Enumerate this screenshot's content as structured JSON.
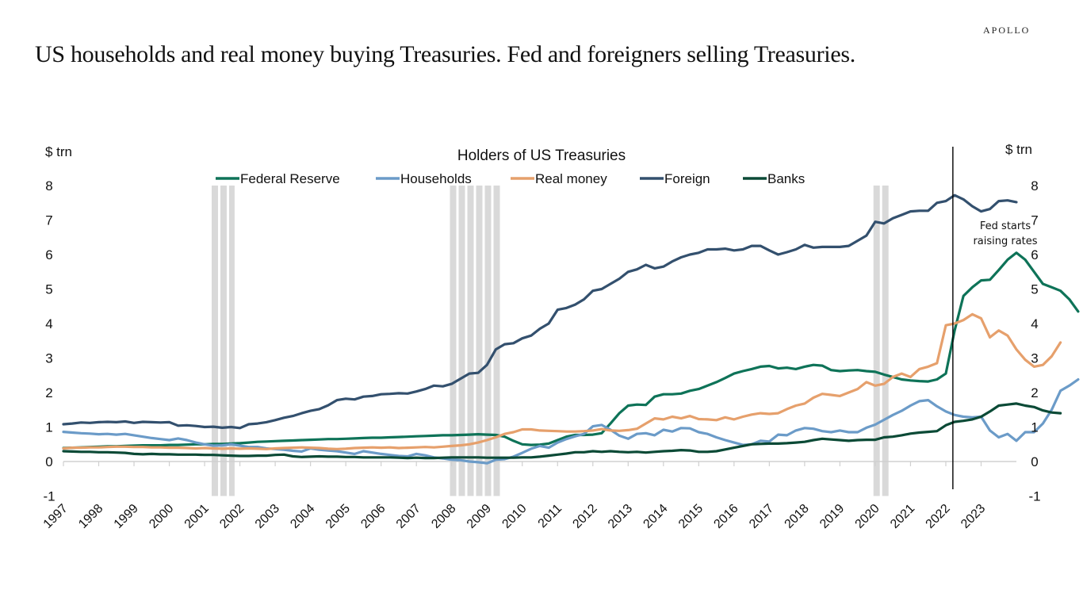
{
  "page": {
    "brand": "APOLLO",
    "headline": "US households and real money buying Treasuries. Fed and foreigners selling Treasuries."
  },
  "chart_data": {
    "type": "line",
    "title": "Holders of US Treasuries",
    "ylabel_left": "$ trn",
    "ylabel_right": "$ trn",
    "ylim": [
      -1,
      8
    ],
    "yticks": [
      -1,
      0,
      1,
      2,
      3,
      4,
      5,
      6,
      7,
      8
    ],
    "xlim": [
      1997,
      2024
    ],
    "xticks": [
      "1997",
      "1998",
      "1999",
      "2000",
      "2001",
      "2002",
      "2003",
      "2004",
      "2005",
      "2006",
      "2007",
      "2008",
      "2009",
      "2010",
      "2011",
      "2012",
      "2013",
      "2014",
      "2015",
      "2016",
      "2017",
      "2018",
      "2019",
      "2020",
      "2021",
      "2022",
      "2023"
    ],
    "legend_position": "top-center",
    "grid": false,
    "recessions": [
      {
        "start": 2001.2,
        "end": 2001.85
      },
      {
        "start": 2007.95,
        "end": 2009.45
      },
      {
        "start": 2019.95,
        "end": 2020.4
      }
    ],
    "annotation": {
      "label_line1": "Fed starts",
      "label_line2": "raising rates",
      "x": 2022.2
    },
    "x_start": 1997.0,
    "x_step": 0.25,
    "series": [
      {
        "name": "Federal Reserve",
        "color": "#0e7358",
        "values": [
          0.39,
          0.4,
          0.41,
          0.42,
          0.43,
          0.44,
          0.44,
          0.45,
          0.46,
          0.47,
          0.47,
          0.47,
          0.48,
          0.48,
          0.49,
          0.5,
          0.5,
          0.51,
          0.51,
          0.52,
          0.53,
          0.55,
          0.57,
          0.58,
          0.59,
          0.6,
          0.61,
          0.62,
          0.63,
          0.64,
          0.65,
          0.65,
          0.66,
          0.67,
          0.68,
          0.69,
          0.69,
          0.7,
          0.71,
          0.72,
          0.73,
          0.74,
          0.75,
          0.76,
          0.76,
          0.77,
          0.78,
          0.79,
          0.78,
          0.77,
          0.72,
          0.6,
          0.5,
          0.48,
          0.49,
          0.52,
          0.62,
          0.72,
          0.77,
          0.77,
          0.78,
          0.82,
          1.1,
          1.4,
          1.62,
          1.65,
          1.64,
          1.88,
          1.95,
          1.95,
          1.97,
          2.05,
          2.1,
          2.2,
          2.3,
          2.42,
          2.55,
          2.62,
          2.68,
          2.75,
          2.77,
          2.7,
          2.72,
          2.68,
          2.75,
          2.8,
          2.78,
          2.65,
          2.62,
          2.64,
          2.65,
          2.62,
          2.6,
          2.52,
          2.45,
          2.38,
          2.35,
          2.33,
          2.32,
          2.38,
          2.55,
          3.8,
          4.8,
          5.05,
          5.25,
          5.27,
          5.55,
          5.85,
          6.05,
          5.85,
          5.5,
          5.15,
          5.05,
          4.95,
          4.7,
          4.35
        ]
      },
      {
        "name": "Households",
        "color": "#6b9bc8",
        "values": [
          0.86,
          0.84,
          0.82,
          0.81,
          0.79,
          0.8,
          0.78,
          0.8,
          0.76,
          0.72,
          0.68,
          0.65,
          0.62,
          0.67,
          0.62,
          0.55,
          0.5,
          0.46,
          0.47,
          0.5,
          0.46,
          0.42,
          0.42,
          0.38,
          0.36,
          0.34,
          0.31,
          0.29,
          0.38,
          0.34,
          0.32,
          0.3,
          0.26,
          0.22,
          0.3,
          0.26,
          0.22,
          0.19,
          0.16,
          0.15,
          0.22,
          0.18,
          0.12,
          0.09,
          0.05,
          0.04,
          0.0,
          -0.02,
          -0.05,
          0.05,
          0.07,
          0.14,
          0.25,
          0.37,
          0.45,
          0.4,
          0.55,
          0.65,
          0.73,
          0.8,
          1.02,
          1.06,
          0.92,
          0.75,
          0.66,
          0.8,
          0.82,
          0.76,
          0.92,
          0.87,
          0.97,
          0.96,
          0.85,
          0.8,
          0.7,
          0.62,
          0.55,
          0.48,
          0.5,
          0.6,
          0.58,
          0.78,
          0.76,
          0.9,
          0.97,
          0.95,
          0.88,
          0.85,
          0.9,
          0.85,
          0.85,
          0.98,
          1.07,
          1.21,
          1.35,
          1.47,
          1.62,
          1.75,
          1.78,
          1.6,
          1.45,
          1.35,
          1.3,
          1.28,
          1.3,
          0.9,
          0.7,
          0.8,
          0.6,
          0.85,
          0.85,
          1.1,
          1.5,
          2.05,
          2.2,
          2.38
        ]
      },
      {
        "name": "Real money",
        "color": "#e6a06c",
        "values": [
          0.38,
          0.4,
          0.4,
          0.41,
          0.41,
          0.42,
          0.43,
          0.43,
          0.42,
          0.42,
          0.41,
          0.41,
          0.4,
          0.4,
          0.39,
          0.38,
          0.39,
          0.38,
          0.37,
          0.38,
          0.37,
          0.38,
          0.37,
          0.36,
          0.38,
          0.39,
          0.4,
          0.41,
          0.4,
          0.39,
          0.37,
          0.36,
          0.37,
          0.39,
          0.4,
          0.41,
          0.4,
          0.41,
          0.39,
          0.4,
          0.41,
          0.42,
          0.41,
          0.43,
          0.45,
          0.47,
          0.5,
          0.55,
          0.62,
          0.7,
          0.8,
          0.85,
          0.93,
          0.93,
          0.9,
          0.89,
          0.88,
          0.87,
          0.87,
          0.88,
          0.9,
          0.94,
          0.9,
          0.89,
          0.91,
          0.95,
          1.1,
          1.25,
          1.22,
          1.3,
          1.25,
          1.32,
          1.23,
          1.22,
          1.2,
          1.28,
          1.22,
          1.3,
          1.36,
          1.4,
          1.38,
          1.4,
          1.52,
          1.62,
          1.68,
          1.85,
          1.96,
          1.93,
          1.9,
          2.0,
          2.1,
          2.3,
          2.2,
          2.25,
          2.45,
          2.55,
          2.45,
          2.68,
          2.75,
          2.85,
          3.95,
          4.0,
          4.1,
          4.27,
          4.15,
          3.6,
          3.8,
          3.65,
          3.25,
          2.95,
          2.75,
          2.8,
          3.05,
          3.45
        ]
      },
      {
        "name": "Foreign",
        "color": "#33506e",
        "values": [
          1.08,
          1.1,
          1.13,
          1.12,
          1.14,
          1.15,
          1.14,
          1.16,
          1.12,
          1.15,
          1.14,
          1.13,
          1.14,
          1.04,
          1.05,
          1.03,
          1.0,
          1.01,
          0.98,
          1.0,
          0.97,
          1.08,
          1.1,
          1.14,
          1.2,
          1.27,
          1.32,
          1.4,
          1.47,
          1.52,
          1.63,
          1.78,
          1.82,
          1.8,
          1.88,
          1.9,
          1.95,
          1.96,
          1.98,
          1.97,
          2.03,
          2.1,
          2.2,
          2.18,
          2.25,
          2.4,
          2.55,
          2.57,
          2.8,
          3.25,
          3.4,
          3.43,
          3.57,
          3.65,
          3.85,
          4.0,
          4.4,
          4.45,
          4.55,
          4.7,
          4.95,
          5.0,
          5.15,
          5.3,
          5.5,
          5.57,
          5.7,
          5.6,
          5.65,
          5.8,
          5.92,
          6.0,
          6.05,
          6.15,
          6.15,
          6.17,
          6.12,
          6.15,
          6.25,
          6.25,
          6.12,
          6.0,
          6.07,
          6.15,
          6.28,
          6.2,
          6.22,
          6.22,
          6.22,
          6.25,
          6.4,
          6.55,
          6.95,
          6.9,
          7.05,
          7.15,
          7.25,
          7.27,
          7.27,
          7.5,
          7.55,
          7.72,
          7.6,
          7.4,
          7.25,
          7.32,
          7.55,
          7.57,
          7.52
        ]
      },
      {
        "name": "Banks",
        "color": "#0b4a36",
        "values": [
          0.3,
          0.29,
          0.28,
          0.28,
          0.27,
          0.27,
          0.26,
          0.25,
          0.22,
          0.21,
          0.22,
          0.21,
          0.21,
          0.2,
          0.2,
          0.2,
          0.19,
          0.19,
          0.18,
          0.17,
          0.16,
          0.16,
          0.17,
          0.17,
          0.19,
          0.2,
          0.15,
          0.13,
          0.14,
          0.15,
          0.14,
          0.14,
          0.13,
          0.13,
          0.12,
          0.12,
          0.12,
          0.12,
          0.11,
          0.1,
          0.11,
          0.1,
          0.1,
          0.11,
          0.12,
          0.12,
          0.12,
          0.12,
          0.11,
          0.11,
          0.11,
          0.11,
          0.12,
          0.12,
          0.14,
          0.17,
          0.2,
          0.23,
          0.27,
          0.27,
          0.3,
          0.28,
          0.3,
          0.28,
          0.27,
          0.28,
          0.26,
          0.28,
          0.3,
          0.31,
          0.33,
          0.32,
          0.28,
          0.28,
          0.3,
          0.35,
          0.4,
          0.45,
          0.5,
          0.51,
          0.52,
          0.52,
          0.53,
          0.55,
          0.57,
          0.62,
          0.66,
          0.64,
          0.62,
          0.6,
          0.62,
          0.63,
          0.63,
          0.7,
          0.72,
          0.76,
          0.81,
          0.84,
          0.86,
          0.88,
          1.05,
          1.15,
          1.18,
          1.22,
          1.3,
          1.45,
          1.62,
          1.65,
          1.68,
          1.62,
          1.58,
          1.48,
          1.42,
          1.4
        ]
      }
    ]
  }
}
